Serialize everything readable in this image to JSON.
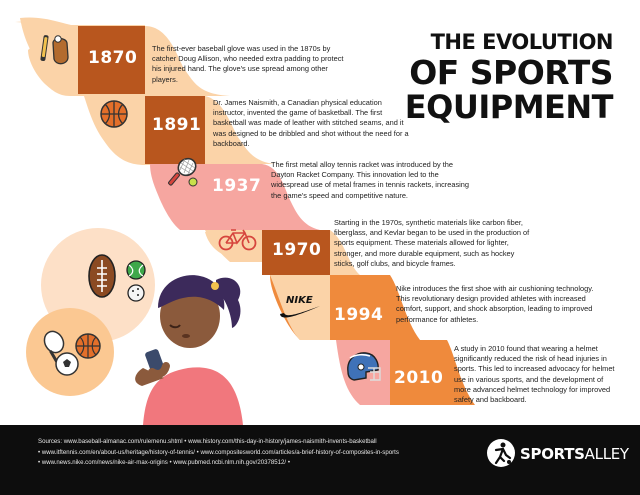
{
  "title": {
    "line1": "THE EVOLUTION",
    "line2": "OF SPORTS",
    "line3": "EQUIPMENT"
  },
  "timeline": [
    {
      "year": "1870",
      "icon": "baseball-bat-glove-icon",
      "text": "The first-ever baseball glove was used in the 1870s by catcher Doug Allison, who needed extra padding to protect his injured hand. The glove's use spread among other players."
    },
    {
      "year": "1891",
      "icon": "basketball-icon",
      "text": "Dr. James Naismith, a Canadian physical education instructor, invented the game of basketball. The first basketball was made of leather with stitched seams, and it was designed to be dribbled and shot without the need for a backboard."
    },
    {
      "year": "1937",
      "icon": "tennis-racket-icon",
      "text": "The first metal alloy tennis racket was introduced by the Dayton Racket Company. This innovation led to the widespread use of metal frames in tennis rackets, increasing the game's speed and competitive nature."
    },
    {
      "year": "1970",
      "icon": "bicycle-icon",
      "text": "Starting in the 1970s, synthetic materials like carbon fiber, fiberglass, and Kevlar began to be used in the production of sports equipment. These materials allowed for lighter, stronger, and more durable equipment, such as hockey sticks, golf clubs, and bicycle frames."
    },
    {
      "year": "1994",
      "icon": "nike-swoosh-icon",
      "logo_text": "NIKE",
      "text": "Nike introduces the first shoe with air cushioning technology. This revolutionary design provided athletes with increased comfort, support, and shock absorption, leading to improved performance for athletes."
    },
    {
      "year": "2010",
      "icon": "football-helmet-icon",
      "text": "A study in 2010 found that wearing a helmet significantly reduced the risk of head injuries in sports. This led to increased advocacy for helmet use in various sports, and the development of more advanced helmet technology for improved safety and backboard."
    }
  ],
  "sources": {
    "line1": "Sources: www.baseball-almanac.com/rulemenu.shtml • www.history.com/this-day-in-history/james-naismith-invents-basketball",
    "line2": "• www.itftennis.com/en/about-us/heritage/history-of-tennis/ • www.compositesworld.com/articles/a-brief-history-of-composites-in-sports",
    "line3": "• www.news.nike.com/news/nike-air-max-origins • www.pubmed.ncbi.nlm.nih.gov/20378512/ •"
  },
  "brand": {
    "bold": "SPORTS",
    "light": "ALLEY",
    "icon": "soccer-player-logo-icon"
  },
  "colors": {
    "dark_orange": "#b8561e",
    "orange": "#ef8a3c",
    "peach": "#fbd3a8",
    "pink": "#f6a6a0",
    "footer": "#0d0d0d"
  }
}
